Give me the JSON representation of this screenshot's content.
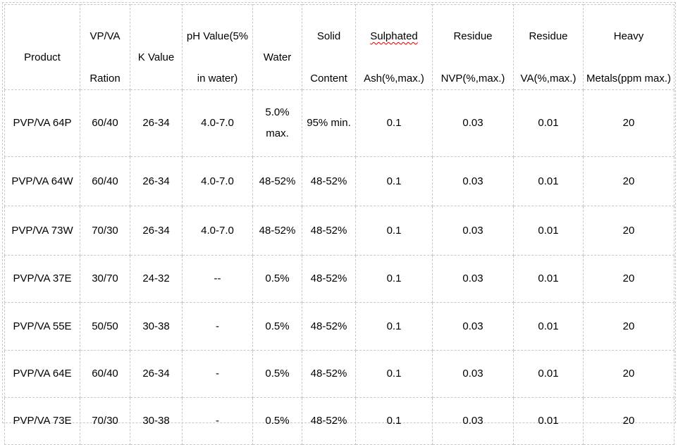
{
  "colors": {
    "border": "#c8c8c8",
    "text": "#000000",
    "spellcheck_squiggle": "#d00000"
  },
  "table": {
    "columns": [
      {
        "id": "product",
        "line1": "Product"
      },
      {
        "id": "vp-va-ration",
        "line1": "VP/VA",
        "line2": "Ration"
      },
      {
        "id": "k-value",
        "line1": "K Value"
      },
      {
        "id": "ph-value",
        "line1": "pH Value(5%",
        "line2": "in water)"
      },
      {
        "id": "water",
        "line1": "Water"
      },
      {
        "id": "solid-content",
        "line1": "Solid",
        "line2": "Content"
      },
      {
        "id": "sulphated-ash",
        "line1": "Sulphated",
        "line2": "Ash(%,max.)",
        "misspelled": true
      },
      {
        "id": "residue-nvp",
        "line1": "Residue",
        "line2": "NVP(%,max.)"
      },
      {
        "id": "residue-va",
        "line1": "Residue",
        "line2": "VA(%,max.)"
      },
      {
        "id": "heavy-metals",
        "line1": "Heavy",
        "line2": "Metals(ppm max.)"
      }
    ],
    "rows": [
      {
        "cells": [
          "PVP/VA 64P",
          "60/40",
          "26-34",
          "4.0-7.0",
          "5.0%\nmax.",
          "95% min.",
          "0.1",
          "0.03",
          "0.01",
          "20"
        ]
      },
      {
        "cells": [
          "PVP/VA 64W",
          "60/40",
          "26-34",
          "4.0-7.0",
          "48-52%",
          "48-52%",
          "0.1",
          "0.03",
          "0.01",
          "20"
        ]
      },
      {
        "cells": [
          "PVP/VA 73W",
          "70/30",
          "26-34",
          "4.0-7.0",
          "48-52%",
          "48-52%",
          "0.1",
          "0.03",
          "0.01",
          "20"
        ]
      },
      {
        "cells": [
          "PVP/VA 37E",
          "30/70",
          "24-32",
          "--",
          "0.5%",
          "48-52%",
          "0.1",
          "0.03",
          "0.01",
          "20"
        ]
      },
      {
        "cells": [
          "PVP/VA 55E",
          "50/50",
          "30-38",
          "-",
          "0.5%",
          "48-52%",
          "0.1",
          "0.03",
          "0.01",
          "20"
        ]
      },
      {
        "cells": [
          "PVP/VA 64E",
          "60/40",
          "26-34",
          "-",
          "0.5%",
          "48-52%",
          "0.1",
          "0.03",
          "0.01",
          "20"
        ]
      },
      {
        "cells": [
          "PVP/VA 73E",
          "70/30",
          "30-38",
          "-",
          "0.5%",
          "48-52%",
          "0.1",
          "0.03",
          "0.01",
          "20"
        ]
      }
    ]
  }
}
